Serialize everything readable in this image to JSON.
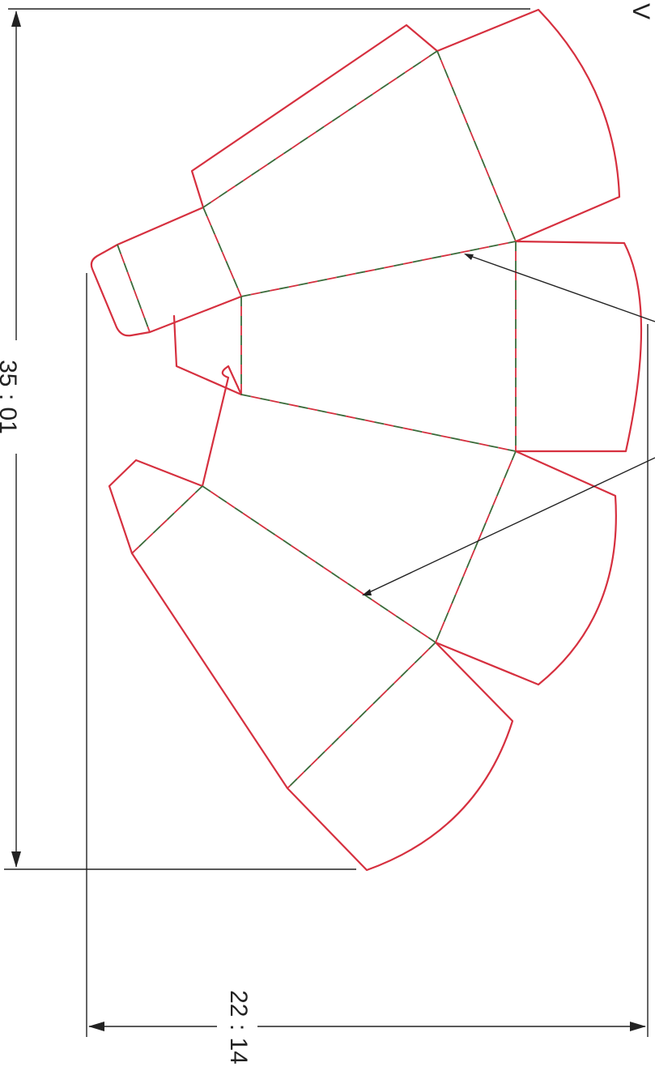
{
  "colors": {
    "cut_line": "#d6303f",
    "fold_line_primary": "#3a6b3a",
    "fold_line_secondary": "#d6303f",
    "dimension_line": "#222222",
    "background": "#ffffff"
  },
  "dimensions": {
    "height_label": "35 : 01",
    "width_label": "22 : 14"
  },
  "partial_label": "V"
}
